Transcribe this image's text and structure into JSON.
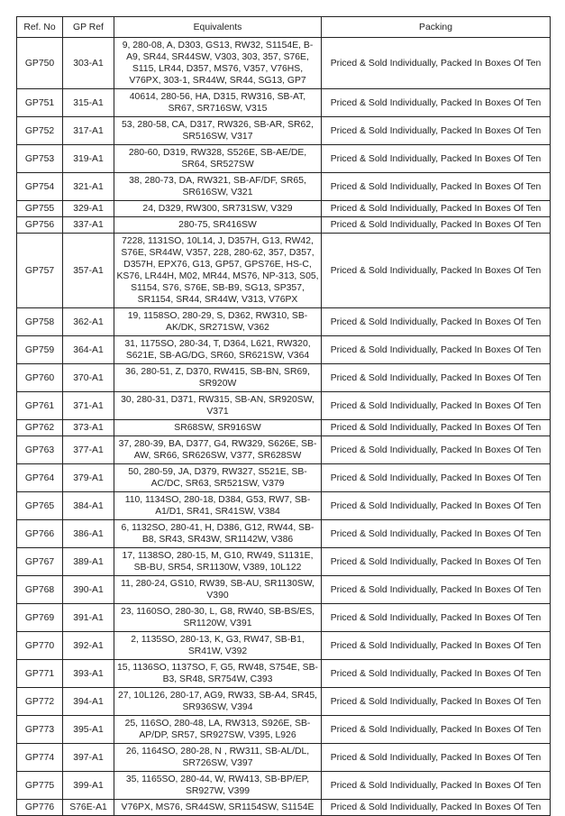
{
  "headers": [
    "Ref. No",
    "GP Ref",
    "Equivalents",
    "Packing"
  ],
  "rows": [
    {
      "ref": "GP750",
      "gp": "303-A1",
      "eq": "9, 280-08, A, D303, GS13, RW32, S1154E, B-A9, SR44, SR44SW, V303, 303, 357, S76E, S115, LR44, D357, MS76, V357, V76HS, V76PX, 303-1, SR44W, SR44, SG13, GP7",
      "packing": "Priced & Sold Individually, Packed In Boxes Of Ten"
    },
    {
      "ref": "GP751",
      "gp": "315-A1",
      "eq": "40614, 280-56, HA, D315, RW316, SB-AT, SR67, SR716SW, V315",
      "packing": "Priced & Sold Individually, Packed In Boxes Of Ten"
    },
    {
      "ref": "GP752",
      "gp": "317-A1",
      "eq": "53, 280-58, CA, D317, RW326, SB-AR, SR62, SR516SW, V317",
      "packing": "Priced & Sold Individually, Packed In Boxes Of Ten"
    },
    {
      "ref": "GP753",
      "gp": "319-A1",
      "eq": "280-60, D319, RW328, S526E, SB-AE/DE, SR64, SR527SW",
      "packing": "Priced & Sold Individually, Packed In Boxes Of Ten"
    },
    {
      "ref": "GP754",
      "gp": "321-A1",
      "eq": "38, 280-73, DA, RW321, SB-AF/DF, SR65, SR616SW, V321",
      "packing": "Priced & Sold Individually, Packed In Boxes Of Ten"
    },
    {
      "ref": "GP755",
      "gp": "329-A1",
      "eq": "24, D329, RW300, SR731SW, V329",
      "packing": "Priced & Sold Individually, Packed In Boxes Of Ten"
    },
    {
      "ref": "GP756",
      "gp": "337-A1",
      "eq": "280-75, SR416SW",
      "packing": "Priced & Sold Individually, Packed In Boxes Of Ten"
    },
    {
      "ref": "GP757",
      "gp": "357-A1",
      "eq": "7228, 1131SO, 10L14, J, D357H, G13, RW42, S76E, SR44W, V357, 228, 280-62, 357, D357, D357H, EPX76, G13, GP57, GPS76E, HS-C, KS76, LR44H, M02, MR44, MS76, NP-313, S05, S1154, S76, S76E, SB-B9, SG13, SP357, SR1154, SR44, SR44W, V313, V76PX",
      "packing": "Priced & Sold Individually, Packed In Boxes Of Ten"
    },
    {
      "ref": "GP758",
      "gp": "362-A1",
      "eq": "19, 1158SO, 280-29, S, D362, RW310, SB-AK/DK, SR271SW, V362",
      "packing": "Priced & Sold Individually, Packed In Boxes Of Ten"
    },
    {
      "ref": "GP759",
      "gp": "364-A1",
      "eq": "31, 1175SO, 280-34, T, D364, L621, RW320, S621E, SB-AG/DG, SR60, SR621SW, V364",
      "packing": "Priced & Sold Individually, Packed In Boxes Of Ten"
    },
    {
      "ref": "GP760",
      "gp": "370-A1",
      "eq": "36, 280-51, Z, D370, RW415, SB-BN, SR69, SR920W",
      "packing": "Priced & Sold Individually, Packed In Boxes Of Ten"
    },
    {
      "ref": "GP761",
      "gp": "371-A1",
      "eq": "30, 280-31, D371, RW315, SB-AN, SR920SW, V371",
      "packing": "Priced & Sold Individually, Packed In Boxes Of Ten"
    },
    {
      "ref": "GP762",
      "gp": "373-A1",
      "eq": "SR68SW, SR916SW",
      "packing": "Priced & Sold Individually, Packed In Boxes Of Ten"
    },
    {
      "ref": "GP763",
      "gp": "377-A1",
      "eq": "37, 280-39, BA, D377, G4, RW329, S626E, SB-AW, SR66, SR626SW, V377, SR628SW",
      "packing": "Priced & Sold Individually, Packed In Boxes Of Ten"
    },
    {
      "ref": "GP764",
      "gp": "379-A1",
      "eq": "50, 280-59, JA, D379, RW327, S521E, SB-AC/DC, SR63, SR521SW, V379",
      "packing": "Priced & Sold Individually, Packed In Boxes Of Ten"
    },
    {
      "ref": "GP765",
      "gp": "384-A1",
      "eq": "110, 1134SO, 280-18, D384, G53, RW7, SB-A1/D1, SR41, SR41SW, V384",
      "packing": "Priced & Sold Individually, Packed In Boxes Of Ten"
    },
    {
      "ref": "GP766",
      "gp": "386-A1",
      "eq": "6, 1132SO, 280-41, H, D386, G12, RW44, SB-B8, SR43, SR43W, SR1142W, V386",
      "packing": "Priced & Sold Individually, Packed In Boxes Of Ten"
    },
    {
      "ref": "GP767",
      "gp": "389-A1",
      "eq": "17, 1138SO, 280-15, M, G10, RW49, S1131E, SB-BU, SR54, SR1130W, V389, 10L122",
      "packing": "Priced & Sold Individually, Packed In Boxes Of Ten"
    },
    {
      "ref": "GP768",
      "gp": "390-A1",
      "eq": "11, 280-24, GS10, RW39, SB-AU, SR1130SW, V390",
      "packing": "Priced & Sold Individually, Packed In Boxes Of Ten"
    },
    {
      "ref": "GP769",
      "gp": "391-A1",
      "eq": "23, 1160SO, 280-30, L, G8, RW40, SB-BS/ES, SR1120W, V391",
      "packing": "Priced & Sold Individually, Packed In Boxes Of Ten"
    },
    {
      "ref": "GP770",
      "gp": "392-A1",
      "eq": "2, 1135SO, 280-13, K, G3, RW47, SB-B1, SR41W, V392",
      "packing": "Priced & Sold Individually, Packed In Boxes Of Ten"
    },
    {
      "ref": "GP771",
      "gp": "393-A1",
      "eq": "15, 1136SO, 1137SO, F, G5, RW48, S754E, SB-B3, SR48, SR754W, C393",
      "packing": "Priced & Sold Individually, Packed In Boxes Of Ten"
    },
    {
      "ref": "GP772",
      "gp": "394-A1",
      "eq": "27, 10L126, 280-17, AG9, RW33, SB-A4, SR45, SR936SW, V394",
      "packing": "Priced & Sold Individually, Packed In Boxes Of Ten"
    },
    {
      "ref": "GP773",
      "gp": "395-A1",
      "eq": "25, 116SO, 280-48, LA, RW313, S926E, SB-AP/DP, SR57, SR927SW, V395, L926",
      "packing": "Priced & Sold Individually, Packed In Boxes Of Ten"
    },
    {
      "ref": "GP774",
      "gp": "397-A1",
      "eq": "26, 1164SO, 280-28, N , RW311, SB-AL/DL, SR726SW, V397",
      "packing": "Priced & Sold Individually, Packed In Boxes Of Ten"
    },
    {
      "ref": "GP775",
      "gp": "399-A1",
      "eq": "35, 1165SO, 280-44, W, RW413, SB-BP/EP, SR927W, V399",
      "packing": "Priced & Sold Individually, Packed In Boxes Of Ten"
    },
    {
      "ref": "GP776",
      "gp": "S76E-A1",
      "eq": "V76PX, MS76, SR44SW, SR1154SW, S1154E",
      "packing": "Priced & Sold Individually, Packed In Boxes Of Ten"
    }
  ]
}
